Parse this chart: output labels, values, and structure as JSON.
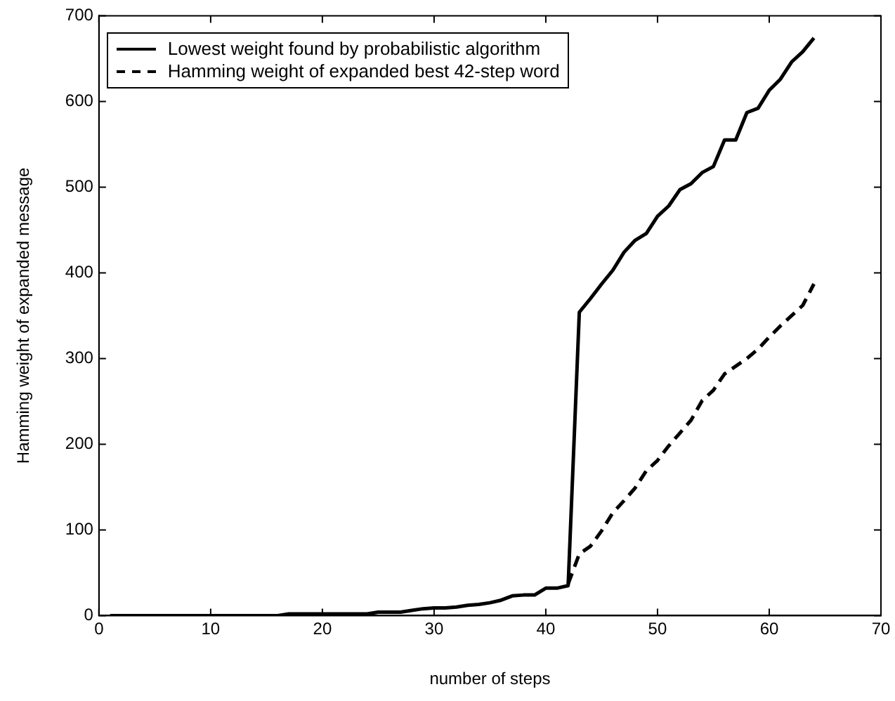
{
  "chart_data": {
    "type": "line",
    "xlabel": "number of steps",
    "ylabel": "Hamming weight of expanded message",
    "xlim": [
      0,
      70
    ],
    "xticks": [
      0,
      10,
      20,
      30,
      40,
      50,
      60,
      70
    ],
    "ylim": [
      0,
      700
    ],
    "yticks": [
      0,
      100,
      200,
      300,
      400,
      500,
      600,
      700
    ],
    "grid": false,
    "legend": "top left",
    "marker": "none",
    "series": [
      {
        "name": "Lowest weight found by probabilistic algorithm",
        "color": "#000000",
        "line_style": "solid",
        "x": [
          1,
          2,
          3,
          4,
          5,
          6,
          7,
          8,
          9,
          10,
          11,
          12,
          13,
          14,
          15,
          16,
          17,
          18,
          19,
          20,
          21,
          22,
          23,
          24,
          25,
          26,
          27,
          28,
          29,
          30,
          31,
          32,
          33,
          34,
          35,
          36,
          37,
          38,
          39,
          40,
          41,
          42,
          43,
          44,
          45,
          46,
          47,
          48,
          49,
          50,
          51,
          52,
          53,
          54,
          55,
          56,
          57,
          58,
          59,
          60,
          61,
          62,
          63,
          64
        ],
        "values": [
          0,
          0,
          0,
          0,
          0,
          0,
          0,
          0,
          0,
          0,
          0,
          0,
          0,
          0,
          0,
          0,
          2,
          2,
          2,
          2,
          2,
          2,
          2,
          2,
          4,
          4,
          4,
          6,
          8,
          9,
          9,
          10,
          12,
          13,
          15,
          18,
          23,
          24,
          24,
          32,
          32,
          35,
          354,
          370,
          387,
          403,
          424,
          438,
          446,
          466,
          478,
          497,
          504,
          517,
          524,
          555,
          555,
          587,
          592,
          613,
          626,
          646,
          658,
          674
        ]
      },
      {
        "name": "Hamming weight of expanded best 42-step word",
        "color": "#000000",
        "line_style": "dashed",
        "x": [
          42,
          43,
          44,
          45,
          46,
          47,
          48,
          49,
          50,
          51,
          52,
          53,
          54,
          55,
          56,
          57,
          58,
          59,
          60,
          61,
          62,
          63,
          64
        ],
        "values": [
          37,
          72,
          81,
          99,
          120,
          134,
          149,
          169,
          181,
          198,
          213,
          228,
          251,
          263,
          282,
          291,
          300,
          311,
          325,
          338,
          350,
          362,
          387
        ]
      }
    ]
  }
}
